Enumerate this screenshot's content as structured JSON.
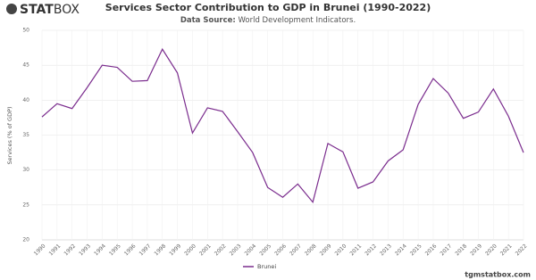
{
  "logo": {
    "bold": "STAT",
    "light": "BOX"
  },
  "chart_data": {
    "type": "line",
    "title": "Services Sector Contribution to GDP in Brunei (1990-2022)",
    "source_label": "Data Source:",
    "source": "World Development Indicators.",
    "y_label": "Services (% of GDP)",
    "categories": [
      "1990",
      "1991",
      "1992",
      "1993",
      "1994",
      "1995",
      "1996",
      "1997",
      "1998",
      "1999",
      "2000",
      "2001",
      "2002",
      "2003",
      "2004",
      "2005",
      "2006",
      "2007",
      "2008",
      "2009",
      "2010",
      "2011",
      "2012",
      "2013",
      "2014",
      "2015",
      "2016",
      "2017",
      "2018",
      "2019",
      "2020",
      "2021",
      "2022"
    ],
    "series": [
      {
        "name": "Brunei",
        "color": "#7b2d8e",
        "values": [
          37.6,
          39.5,
          38.8,
          41.8,
          45.0,
          44.7,
          42.7,
          42.8,
          47.3,
          43.9,
          35.3,
          38.9,
          38.4,
          35.5,
          32.5,
          27.5,
          26.1,
          28.0,
          25.4,
          33.8,
          32.6,
          27.4,
          28.3,
          31.3,
          32.9,
          39.4,
          43.1,
          41.0,
          37.4,
          38.3,
          41.6,
          37.7,
          32.5
        ]
      }
    ],
    "ylim": [
      20,
      50
    ],
    "yticks": [
      20,
      25,
      30,
      35,
      40,
      45,
      50
    ],
    "grid": true
  },
  "footer": "tgmstatbox.com"
}
